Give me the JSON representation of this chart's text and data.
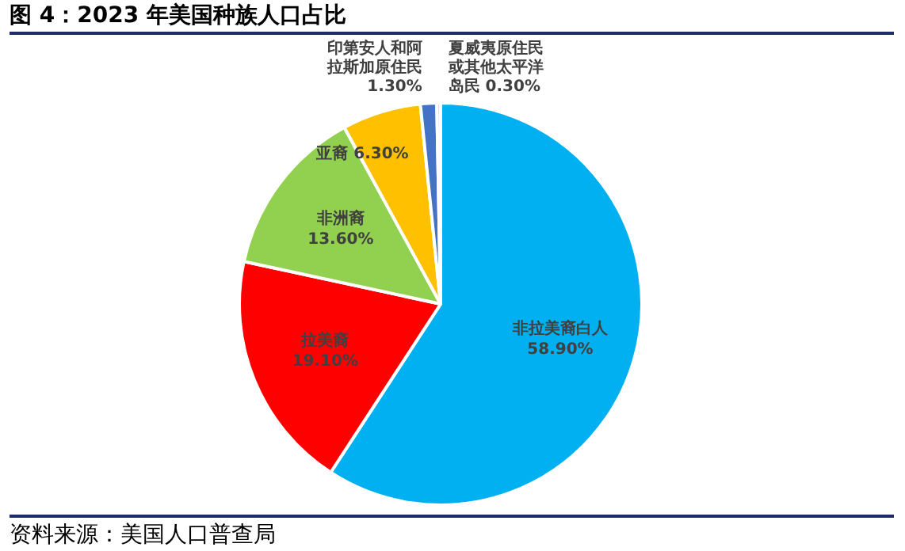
{
  "chart_data": {
    "type": "pie",
    "title": "图 4：2023 年美国种族人口占比",
    "categories": [
      "非拉美裔白人",
      "拉美裔",
      "非洲裔",
      "亚裔",
      "印第安人和阿拉斯加原住民",
      "夏威夷原住民或其他太平洋岛民"
    ],
    "values": [
      58.9,
      19.1,
      13.6,
      6.3,
      1.3,
      0.3
    ],
    "value_labels": [
      "58.90%",
      "19.10%",
      "13.60%",
      "6.30%",
      "1.30%",
      "0.30%"
    ],
    "colors": [
      "#00b0f0",
      "#ff0000",
      "#92d050",
      "#ffc000",
      "#4472c4",
      "#c5e0b4"
    ],
    "legend": false,
    "annotations": [
      "资料来源：美国人口普查局"
    ]
  }
}
